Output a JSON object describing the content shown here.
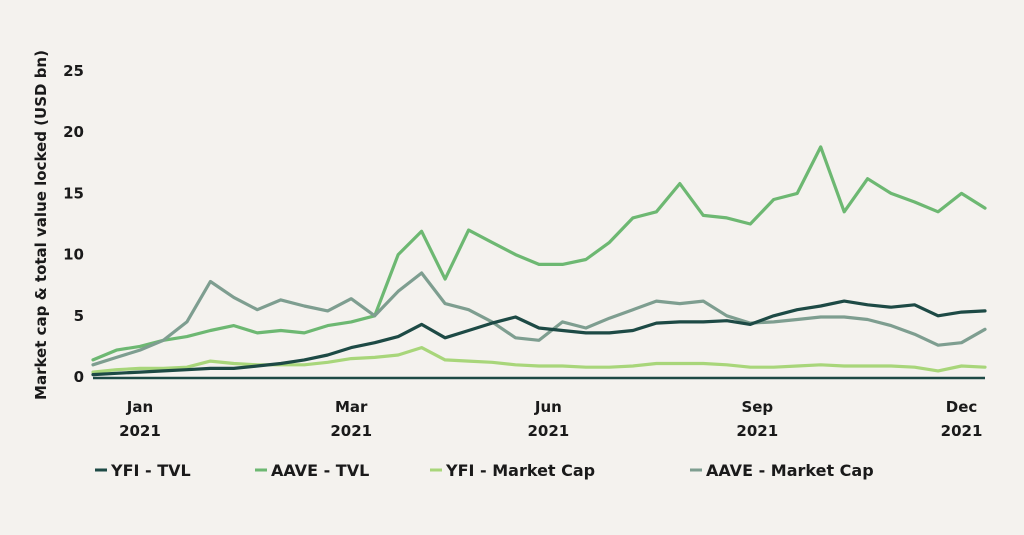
{
  "chart_data": {
    "type": "line",
    "title": "",
    "xlabel": "",
    "ylabel": "Market cap & total value locked (USD bn)",
    "ylim": [
      0,
      25
    ],
    "yticks": [
      0,
      5,
      10,
      15,
      20,
      25
    ],
    "xlim": [
      0,
      50
    ],
    "xticks": [
      {
        "x": 2,
        "label": [
          "Jan",
          "2021"
        ]
      },
      {
        "x": 11,
        "label": [
          "Mar",
          "2021"
        ]
      },
      {
        "x": 19.4,
        "label": [
          "Jun",
          "2021"
        ]
      },
      {
        "x": 28.3,
        "label": [
          "Sep",
          "2021"
        ]
      },
      {
        "x": 37,
        "label": [
          "Dec",
          "2021"
        ]
      }
    ],
    "x_unit": "week index from start of Jan 2021 (approx.)",
    "x": [
      0,
      1,
      2,
      3,
      4,
      5,
      6,
      7,
      8,
      9,
      10,
      11,
      12,
      13,
      14,
      15,
      16,
      17,
      18,
      19,
      20,
      21,
      22,
      23,
      24,
      25,
      26,
      27,
      28,
      29,
      30,
      31,
      32,
      33,
      34,
      35,
      36,
      37,
      38
    ],
    "grid": false,
    "legend_position": "bottom",
    "series": [
      {
        "name": "YFI - TVL",
        "color": "#1d4a45",
        "values": [
          0.2,
          0.3,
          0.4,
          0.5,
          0.6,
          0.7,
          0.7,
          0.9,
          1.1,
          1.4,
          1.8,
          2.4,
          2.8,
          3.3,
          4.3,
          3.2,
          3.8,
          4.4,
          4.9,
          4.0,
          3.8,
          3.6,
          3.6,
          3.8,
          4.4,
          4.5,
          4.5,
          4.6,
          4.3,
          5.0,
          5.5,
          5.8,
          6.2,
          5.9,
          5.7,
          5.9,
          5.0,
          5.3,
          5.4
        ]
      },
      {
        "name": "AAVE - TVL",
        "color": "#6db872",
        "values": [
          1.4,
          2.2,
          2.5,
          3.0,
          3.3,
          3.8,
          4.2,
          3.6,
          3.8,
          3.6,
          4.2,
          4.5,
          5.0,
          10.0,
          11.9,
          8.0,
          12.0,
          11.0,
          10.0,
          9.2,
          9.2,
          9.6,
          11.0,
          13.0,
          13.5,
          15.8,
          13.2,
          13.0,
          12.5,
          14.5,
          15.0,
          18.8,
          13.5,
          16.2,
          15.0,
          14.3,
          13.5,
          15.0,
          13.8
        ]
      },
      {
        "name": "YFI - Market Cap",
        "color": "#a8d67a",
        "values": [
          0.4,
          0.6,
          0.7,
          0.7,
          0.8,
          1.3,
          1.1,
          1.0,
          1.0,
          1.0,
          1.2,
          1.5,
          1.6,
          1.8,
          2.4,
          1.4,
          1.3,
          1.2,
          1.0,
          0.9,
          0.9,
          0.8,
          0.8,
          0.9,
          1.1,
          1.1,
          1.1,
          1.0,
          0.8,
          0.8,
          0.9,
          1.0,
          0.9,
          0.9,
          0.9,
          0.8,
          0.5,
          0.9,
          0.8
        ]
      },
      {
        "name": "AAVE - Market Cap",
        "color": "#7e9e90",
        "values": [
          1.0,
          1.6,
          2.2,
          3.0,
          4.5,
          7.8,
          6.5,
          5.5,
          6.3,
          5.8,
          5.4,
          6.4,
          5.0,
          7.0,
          8.5,
          6.0,
          5.5,
          4.5,
          3.2,
          3.0,
          4.5,
          4.0,
          4.8,
          5.5,
          6.2,
          6.0,
          6.2,
          5.0,
          4.4,
          4.5,
          4.7,
          4.9,
          4.9,
          4.7,
          4.2,
          3.5,
          2.6,
          2.8,
          3.9
        ]
      }
    ]
  }
}
